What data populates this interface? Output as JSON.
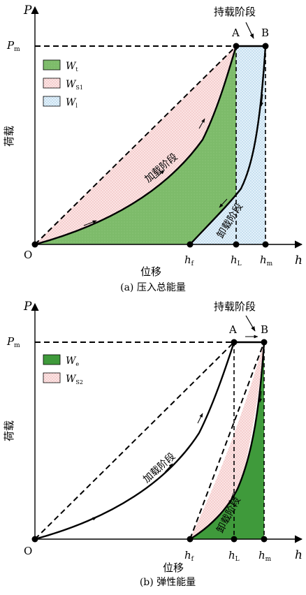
{
  "colors": {
    "wt": "#7dbb6a",
    "ws_fill": "#fbe4e4",
    "ws_dot": "#e89a9a",
    "wl_fill": "#e3f1fa",
    "wl_dot": "#86b6d8",
    "we": "#3f9a3b",
    "line": "#000000"
  },
  "top": {
    "caption": "(a) 压入总能量",
    "y_axis": "P",
    "x_axis": "h",
    "pm_label": "P",
    "pm_sub": "m",
    "ylabel": "荷载",
    "xlabel": "位移",
    "origin": "O",
    "point_a": "A",
    "point_b": "B",
    "hold_label": "持载阶段",
    "load_label": "加载阶段",
    "unload_label": "卸载阶段",
    "ticks": [
      {
        "main": "h",
        "sub": "f"
      },
      {
        "main": "h",
        "sub": "L"
      },
      {
        "main": "h",
        "sub": "m"
      }
    ],
    "legend": [
      {
        "main": "W",
        "sub": "t",
        "key": "wt"
      },
      {
        "main": "W",
        "sub": "S1",
        "key": "ws"
      },
      {
        "main": "W",
        "sub": "l",
        "key": "wl"
      }
    ]
  },
  "bottom": {
    "caption": "(b) 弹性能量",
    "y_axis": "P",
    "x_axis": "h",
    "pm_label": "P",
    "pm_sub": "m",
    "ylabel": "荷载",
    "xlabel": "位移",
    "origin": "O",
    "point_a": "A",
    "point_b": "B",
    "hold_label": "持载阶段",
    "load_label": "加载阶段",
    "unload_label": "卸载阶段",
    "ticks": [
      {
        "main": "h",
        "sub": "f"
      },
      {
        "main": "h",
        "sub": "L"
      },
      {
        "main": "h",
        "sub": "m"
      }
    ],
    "legend": [
      {
        "main": "W",
        "sub": "e",
        "key": "we"
      },
      {
        "main": "W",
        "sub": "S2",
        "key": "ws"
      }
    ]
  }
}
